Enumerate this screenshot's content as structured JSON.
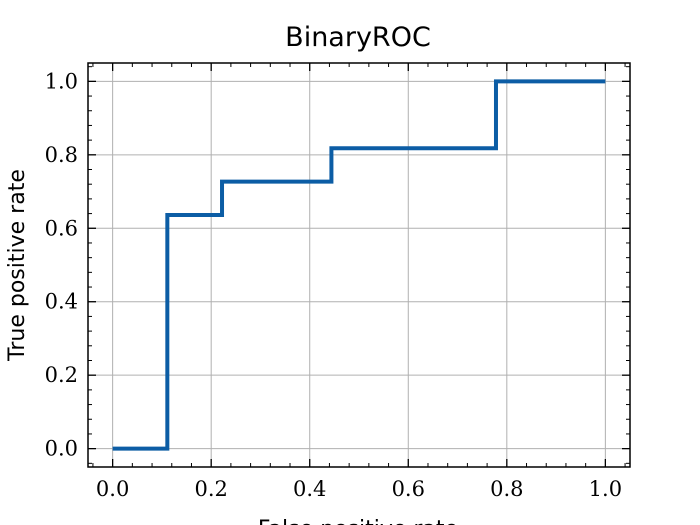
{
  "chart_data": {
    "type": "line",
    "title": "BinaryROC",
    "xlabel": "False positive rate",
    "ylabel": "True positive rate",
    "xlim": [
      -0.05,
      1.05
    ],
    "ylim": [
      -0.05,
      1.05
    ],
    "x_ticks": [
      0.0,
      0.2,
      0.4,
      0.6,
      0.8,
      1.0
    ],
    "x_tick_labels": [
      "0.0",
      "0.2",
      "0.4",
      "0.6",
      "0.8",
      "1.0"
    ],
    "y_ticks": [
      0.0,
      0.2,
      0.4,
      0.6,
      0.8,
      1.0
    ],
    "y_tick_labels": [
      "0.0",
      "0.2",
      "0.4",
      "0.6",
      "0.8",
      "1.0"
    ],
    "grid": true,
    "series": [
      {
        "color": "#0C5DA5",
        "x": [
          0.0,
          0.111,
          0.111,
          0.222,
          0.222,
          0.444,
          0.444,
          0.778,
          0.778,
          1.0
        ],
        "y": [
          0.0,
          0.0,
          0.636,
          0.636,
          0.727,
          0.727,
          0.818,
          0.818,
          1.0,
          1.0
        ]
      }
    ]
  }
}
